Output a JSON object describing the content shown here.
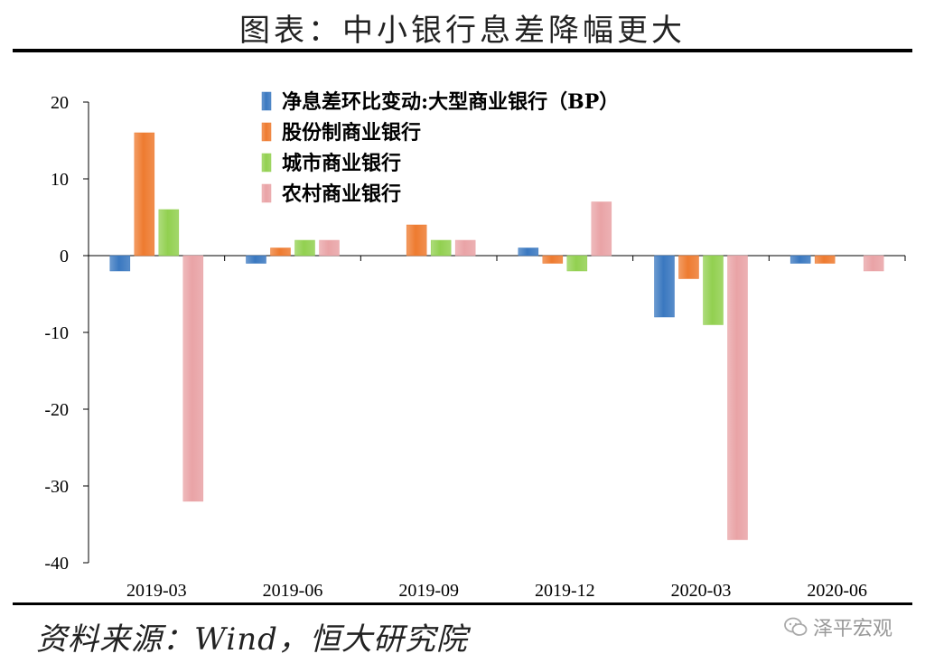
{
  "header": {
    "title": "图表：中小银行息差降幅更大"
  },
  "footer": {
    "source": "资料来源：Wind，恒大研究院",
    "watermark": "泽平宏观"
  },
  "chart_data": {
    "type": "bar",
    "categories": [
      "2019-03",
      "2019-06",
      "2019-09",
      "2019-12",
      "2020-03",
      "2020-06"
    ],
    "series": [
      {
        "name": "净息差环比变动:大型商业银行（BP）",
        "color": "#3a78c0",
        "values": [
          -2,
          -1,
          0,
          1,
          -8,
          -1
        ]
      },
      {
        "name": "股份制商业银行",
        "color": "#ee7b30",
        "values": [
          16,
          1,
          4,
          -1,
          -3,
          -1
        ]
      },
      {
        "name": "城市商业银行",
        "color": "#92d050",
        "values": [
          6,
          2,
          2,
          -2,
          -9,
          0
        ]
      },
      {
        "name": "农村商业银行",
        "color": "#e9a3a6",
        "values": [
          -32,
          2,
          2,
          7,
          -37,
          -2
        ]
      }
    ],
    "ylim": [
      -40,
      20
    ],
    "yticks": [
      20,
      10,
      0,
      -10,
      -20,
      -30,
      -40
    ],
    "legend_position": "top-center",
    "grid": false
  }
}
